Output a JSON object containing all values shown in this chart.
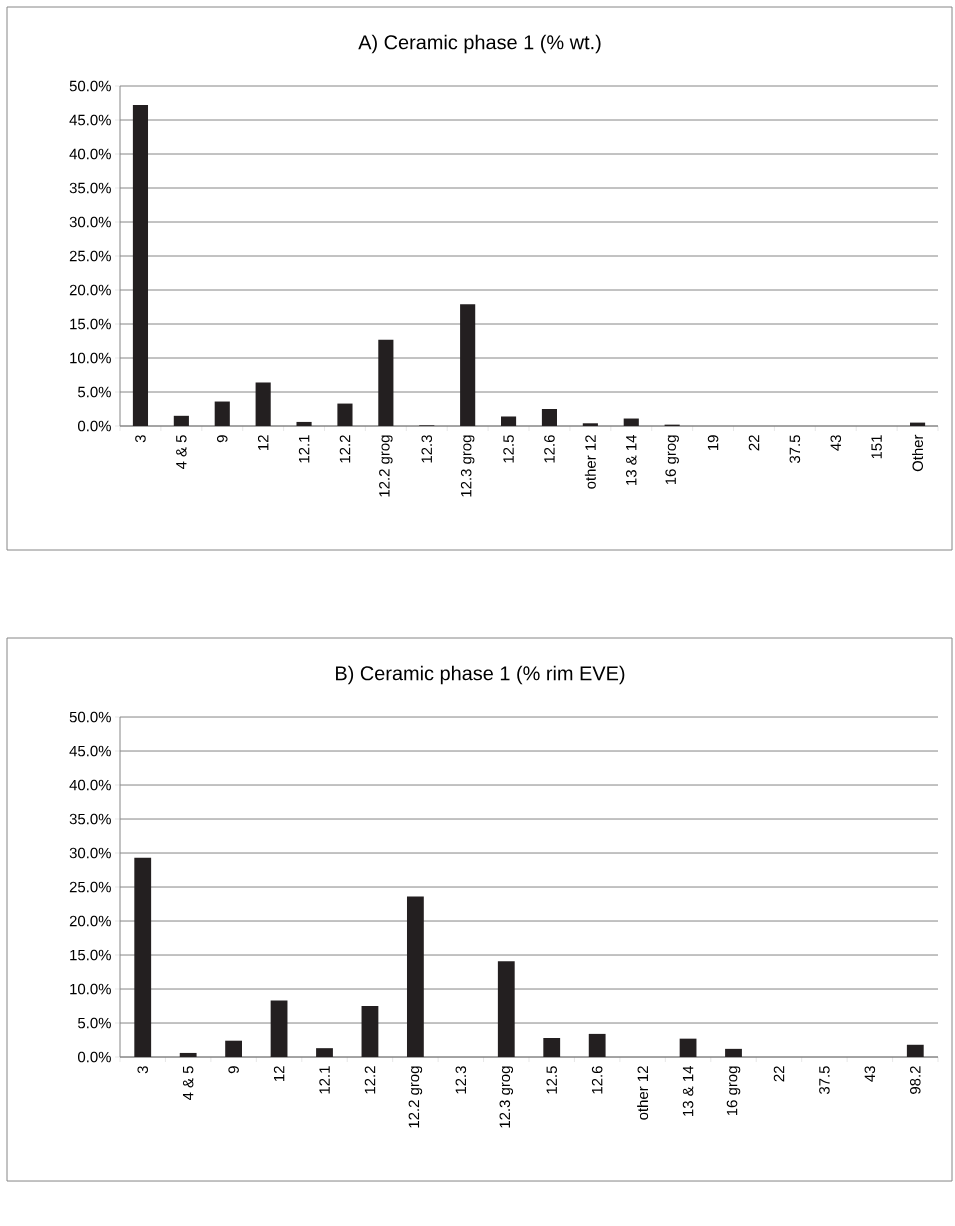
{
  "chart_data": [
    {
      "type": "bar",
      "title": "A) Ceramic phase 1 (% wt.)",
      "categories": [
        "3",
        "4 & 5",
        "9",
        "12",
        "12.1",
        "12.2",
        "12.2 grog",
        "12.3",
        "12.3 grog",
        "12.5",
        "12.6",
        "other 12",
        "13 & 14",
        "16 grog",
        "19",
        "22",
        "37.5",
        "43",
        "151",
        "Other"
      ],
      "values": [
        47.2,
        1.5,
        3.6,
        6.4,
        0.6,
        3.3,
        12.7,
        0.1,
        17.9,
        1.4,
        2.5,
        0.4,
        1.1,
        0.2,
        0,
        0,
        0,
        0,
        0,
        0.5
      ],
      "color": "#231f20",
      "ylim": [
        0,
        50
      ],
      "yticks": [
        {
          "value": 0,
          "label": "0.0%"
        },
        {
          "value": 5,
          "label": "5.0%"
        },
        {
          "value": 10,
          "label": "10.0%"
        },
        {
          "value": 15,
          "label": "15.0%"
        },
        {
          "value": 20,
          "label": "20.0%"
        },
        {
          "value": 25,
          "label": "25.0%"
        },
        {
          "value": 30,
          "label": "30.0%"
        },
        {
          "value": 35,
          "label": "35.0%"
        },
        {
          "value": 40,
          "label": "40.0%"
        },
        {
          "value": 45,
          "label": "45.0%"
        },
        {
          "value": 50,
          "label": "50.0%"
        }
      ],
      "grid": "y"
    },
    {
      "type": "bar",
      "title": "B) Ceramic phase 1 (% rim EVE)",
      "categories": [
        "3",
        "4 & 5",
        "9",
        "12",
        "12.1",
        "12.2",
        "12.2 grog",
        "12.3",
        "12.3 grog",
        "12.5",
        "12.6",
        "other 12",
        "13 & 14",
        "16 grog",
        "22",
        "37.5",
        "43",
        "98.2"
      ],
      "values": [
        29.3,
        0.6,
        2.4,
        8.3,
        1.3,
        7.5,
        23.6,
        0,
        14.1,
        2.8,
        3.4,
        0,
        2.7,
        1.2,
        0,
        0,
        0,
        1.8
      ],
      "color": "#231f20",
      "ylim": [
        0,
        50
      ],
      "yticks": [
        {
          "value": 0,
          "label": "0.0%"
        },
        {
          "value": 5,
          "label": "5.0%"
        },
        {
          "value": 10,
          "label": "10.0%"
        },
        {
          "value": 15,
          "label": "15.0%"
        },
        {
          "value": 20,
          "label": "20.0%"
        },
        {
          "value": 25,
          "label": "25.0%"
        },
        {
          "value": 30,
          "label": "30.0%"
        },
        {
          "value": 35,
          "label": "35.0%"
        },
        {
          "value": 40,
          "label": "40.0%"
        },
        {
          "value": 45,
          "label": "45.0%"
        },
        {
          "value": 50,
          "label": "50.0%"
        }
      ],
      "grid": "y"
    }
  ]
}
